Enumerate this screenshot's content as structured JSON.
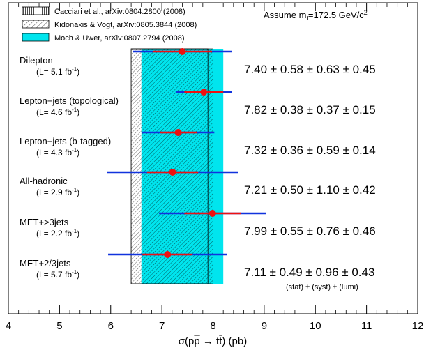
{
  "chart_data": {
    "type": "scatter",
    "xlabel_parts": [
      "σ(p",
      "p",
      " → t",
      "t",
      ") (pb)"
    ],
    "xlim": [
      4,
      12
    ],
    "xticks": [
      "4",
      "5",
      "6",
      "7",
      "8",
      "9",
      "10",
      "11",
      "12"
    ],
    "assumption": {
      "prefix": "Assume m",
      "sub": "t",
      "value": "=172.5 GeV/c",
      "sup": "2"
    },
    "legend": [
      {
        "label": "Cacciari et al., arXiv:0804.2800 (2008)",
        "fill": "vlines"
      },
      {
        "label": "Kidonakis & Vogt, arXiv:0805.3844 (2008)",
        "fill": "hatch"
      },
      {
        "label": "Moch & Uwer, arXiv:0807.2794 (2008)",
        "fill": "solid"
      }
    ],
    "theory_bands": [
      {
        "name": "Moch & Uwer",
        "range": [
          6.6,
          8.2
        ],
        "color": "#00e5ee"
      },
      {
        "name": "Kidonakis & Vogt",
        "range": [
          6.4,
          8.0
        ]
      },
      {
        "name": "Cacciari et al.",
        "range": [
          6.4,
          7.9
        ]
      }
    ],
    "measurements": [
      {
        "name": "Dilepton",
        "lumi_prefix": "(L= 5.1 fb",
        "lumi_sup": "-1",
        "lumi_suffix": ")",
        "value": 7.4,
        "stat": 0.58,
        "syst": 0.63,
        "lumi": 0.45,
        "result": "7.40 ± 0.58 ± 0.63 ± 0.45"
      },
      {
        "name": "Lepton+jets (topological)",
        "lumi_prefix": "(L= 4.6 fb",
        "lumi_sup": "-1",
        "lumi_suffix": ")",
        "value": 7.82,
        "stat": 0.38,
        "syst": 0.37,
        "lumi": 0.15,
        "result": "7.82 ± 0.38 ± 0.37 ± 0.15"
      },
      {
        "name": "Lepton+jets (b-tagged)",
        "lumi_prefix": "(L= 4.3 fb",
        "lumi_sup": "-1",
        "lumi_suffix": ")",
        "value": 7.32,
        "stat": 0.36,
        "syst": 0.59,
        "lumi": 0.14,
        "result": "7.32 ± 0.36 ± 0.59 ± 0.14"
      },
      {
        "name": "All-hadronic",
        "lumi_prefix": "(L= 2.9 fb",
        "lumi_sup": "-1",
        "lumi_suffix": ")",
        "value": 7.21,
        "stat": 0.5,
        "syst": 1.1,
        "lumi": 0.42,
        "result": "7.21 ± 0.50 ± 1.10 ± 0.42"
      },
      {
        "name": "MET+>3jets",
        "lumi_prefix": "(L= 2.2 fb",
        "lumi_sup": "-1",
        "lumi_suffix": ")",
        "value": 7.99,
        "stat": 0.55,
        "syst": 0.76,
        "lumi": 0.46,
        "result": "7.99 ± 0.55 ± 0.76 ± 0.46"
      },
      {
        "name": "MET+2/3jets",
        "lumi_prefix": "(L= 5.7 fb",
        "lumi_sup": "-1",
        "lumi_suffix": ")",
        "value": 7.11,
        "stat": 0.49,
        "syst": 0.96,
        "lumi": 0.43,
        "result": "7.11 ± 0.49 ± 0.96 ± 0.43"
      }
    ],
    "uncertainty_legend": "(stat) ± (syst) ± (lumi)",
    "colors": {
      "point": "#ee1111",
      "stat_bar": "#ee1111",
      "total_bar": "#1133dd",
      "band": "#00e5ee"
    },
    "grid": false
  }
}
